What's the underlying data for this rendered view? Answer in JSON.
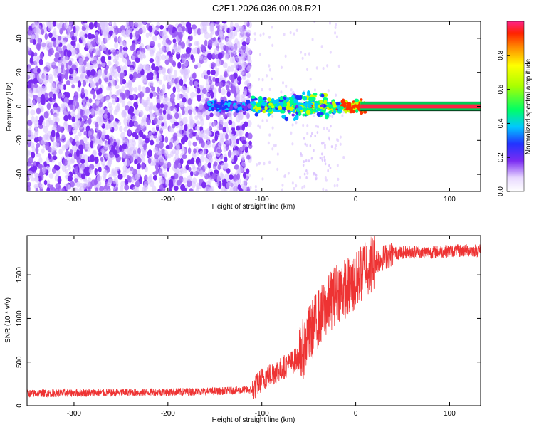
{
  "title": "C2E1.2026.036.00.08.R21",
  "colors": {
    "line": "#ee3333",
    "purple": "#7b2cf2",
    "axis": "#000000"
  },
  "chart_data": [
    {
      "type": "heatmap",
      "xlabel": "Height of straight line (km)",
      "ylabel": "Frequency (Hz)",
      "xlim": [
        -350,
        133
      ],
      "ylim": [
        -50,
        50
      ],
      "xticks": [
        -300,
        -200,
        -100,
        0,
        100
      ],
      "yticks": [
        -40,
        -20,
        0,
        20,
        40
      ],
      "grid": false,
      "description_points": [
        {
          "x": -350,
          "y_range": [
            -50,
            50
          ],
          "amplitude": 0.15
        },
        {
          "x": -110,
          "y_range": [
            -5,
            5
          ],
          "amplitude": 0.25
        },
        {
          "x": -60,
          "y_range": [
            -8,
            8
          ],
          "amplitude": 0.4
        },
        {
          "x": -10,
          "y_range": [
            -3,
            3
          ],
          "amplitude": 0.7
        },
        {
          "x": 130,
          "y_range": [
            -1,
            1
          ],
          "amplitude": 0.95
        }
      ],
      "colorbar": {
        "label": "Normalized spectral amplitude",
        "range": [
          0,
          1
        ],
        "ticks": [
          "0.0",
          "0.2",
          "0.4",
          "0.6",
          "0.8"
        ]
      }
    },
    {
      "type": "line",
      "xlabel": "Height of straight line (km)",
      "ylabel": "SNR (10 * v/v)",
      "xlim": [
        -350,
        133
      ],
      "ylim": [
        0,
        1950
      ],
      "xticks": [
        -300,
        -200,
        -100,
        0,
        100
      ],
      "yticks": [
        0,
        500,
        1000,
        1500
      ],
      "grid": false,
      "series": [
        {
          "x": [
            -350,
            -300,
            -250,
            -200,
            -150,
            -110,
            -100,
            -80,
            -60,
            -50,
            -40,
            -30,
            -20,
            -10,
            0,
            10,
            20,
            30,
            40,
            60,
            80,
            100,
            120,
            133
          ],
          "y": [
            140,
            145,
            150,
            155,
            165,
            180,
            300,
            420,
            550,
            800,
            1000,
            1150,
            1300,
            1350,
            1400,
            1600,
            1650,
            1700,
            1750,
            1760,
            1760,
            1770,
            1780,
            1780
          ]
        }
      ]
    }
  ]
}
